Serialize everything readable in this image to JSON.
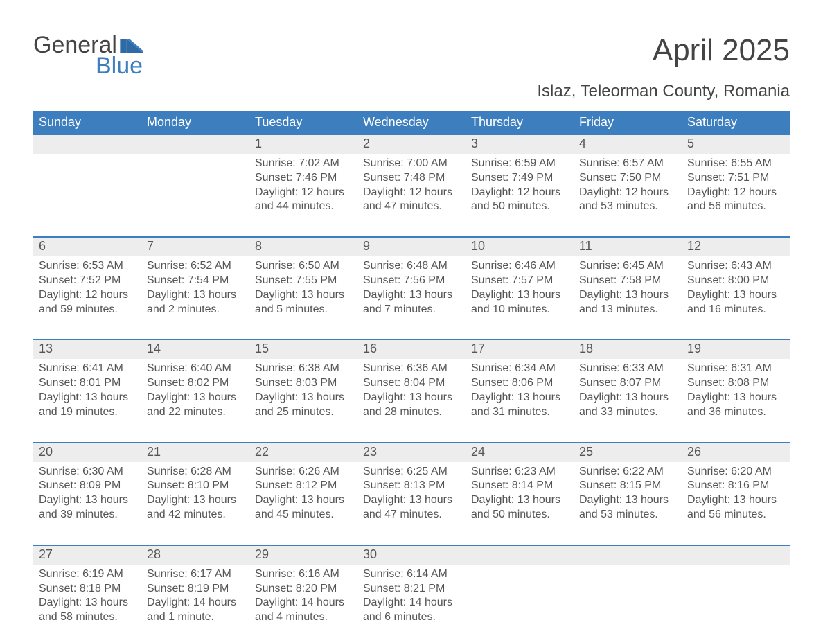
{
  "logo": {
    "top": "General",
    "bottom": "Blue",
    "colors": {
      "text": "#444444",
      "accent": "#3d7ebf"
    }
  },
  "title": "April 2025",
  "subtitle": "Islaz, Teleorman County, Romania",
  "theme": {
    "header_bg": "#3d7ebf",
    "header_text": "#ffffff",
    "daynum_bg": "#ededed",
    "week_border": "#3d7ebf",
    "body_text": "#555555",
    "page_bg": "#ffffff"
  },
  "day_names": [
    "Sunday",
    "Monday",
    "Tuesday",
    "Wednesday",
    "Thursday",
    "Friday",
    "Saturday"
  ],
  "weeks": [
    [
      null,
      null,
      {
        "n": "1",
        "sunrise": "Sunrise: 7:02 AM",
        "sunset": "Sunset: 7:46 PM",
        "day": "Daylight: 12 hours and 44 minutes."
      },
      {
        "n": "2",
        "sunrise": "Sunrise: 7:00 AM",
        "sunset": "Sunset: 7:48 PM",
        "day": "Daylight: 12 hours and 47 minutes."
      },
      {
        "n": "3",
        "sunrise": "Sunrise: 6:59 AM",
        "sunset": "Sunset: 7:49 PM",
        "day": "Daylight: 12 hours and 50 minutes."
      },
      {
        "n": "4",
        "sunrise": "Sunrise: 6:57 AM",
        "sunset": "Sunset: 7:50 PM",
        "day": "Daylight: 12 hours and 53 minutes."
      },
      {
        "n": "5",
        "sunrise": "Sunrise: 6:55 AM",
        "sunset": "Sunset: 7:51 PM",
        "day": "Daylight: 12 hours and 56 minutes."
      }
    ],
    [
      {
        "n": "6",
        "sunrise": "Sunrise: 6:53 AM",
        "sunset": "Sunset: 7:52 PM",
        "day": "Daylight: 12 hours and 59 minutes."
      },
      {
        "n": "7",
        "sunrise": "Sunrise: 6:52 AM",
        "sunset": "Sunset: 7:54 PM",
        "day": "Daylight: 13 hours and 2 minutes."
      },
      {
        "n": "8",
        "sunrise": "Sunrise: 6:50 AM",
        "sunset": "Sunset: 7:55 PM",
        "day": "Daylight: 13 hours and 5 minutes."
      },
      {
        "n": "9",
        "sunrise": "Sunrise: 6:48 AM",
        "sunset": "Sunset: 7:56 PM",
        "day": "Daylight: 13 hours and 7 minutes."
      },
      {
        "n": "10",
        "sunrise": "Sunrise: 6:46 AM",
        "sunset": "Sunset: 7:57 PM",
        "day": "Daylight: 13 hours and 10 minutes."
      },
      {
        "n": "11",
        "sunrise": "Sunrise: 6:45 AM",
        "sunset": "Sunset: 7:58 PM",
        "day": "Daylight: 13 hours and 13 minutes."
      },
      {
        "n": "12",
        "sunrise": "Sunrise: 6:43 AM",
        "sunset": "Sunset: 8:00 PM",
        "day": "Daylight: 13 hours and 16 minutes."
      }
    ],
    [
      {
        "n": "13",
        "sunrise": "Sunrise: 6:41 AM",
        "sunset": "Sunset: 8:01 PM",
        "day": "Daylight: 13 hours and 19 minutes."
      },
      {
        "n": "14",
        "sunrise": "Sunrise: 6:40 AM",
        "sunset": "Sunset: 8:02 PM",
        "day": "Daylight: 13 hours and 22 minutes."
      },
      {
        "n": "15",
        "sunrise": "Sunrise: 6:38 AM",
        "sunset": "Sunset: 8:03 PM",
        "day": "Daylight: 13 hours and 25 minutes."
      },
      {
        "n": "16",
        "sunrise": "Sunrise: 6:36 AM",
        "sunset": "Sunset: 8:04 PM",
        "day": "Daylight: 13 hours and 28 minutes."
      },
      {
        "n": "17",
        "sunrise": "Sunrise: 6:34 AM",
        "sunset": "Sunset: 8:06 PM",
        "day": "Daylight: 13 hours and 31 minutes."
      },
      {
        "n": "18",
        "sunrise": "Sunrise: 6:33 AM",
        "sunset": "Sunset: 8:07 PM",
        "day": "Daylight: 13 hours and 33 minutes."
      },
      {
        "n": "19",
        "sunrise": "Sunrise: 6:31 AM",
        "sunset": "Sunset: 8:08 PM",
        "day": "Daylight: 13 hours and 36 minutes."
      }
    ],
    [
      {
        "n": "20",
        "sunrise": "Sunrise: 6:30 AM",
        "sunset": "Sunset: 8:09 PM",
        "day": "Daylight: 13 hours and 39 minutes."
      },
      {
        "n": "21",
        "sunrise": "Sunrise: 6:28 AM",
        "sunset": "Sunset: 8:10 PM",
        "day": "Daylight: 13 hours and 42 minutes."
      },
      {
        "n": "22",
        "sunrise": "Sunrise: 6:26 AM",
        "sunset": "Sunset: 8:12 PM",
        "day": "Daylight: 13 hours and 45 minutes."
      },
      {
        "n": "23",
        "sunrise": "Sunrise: 6:25 AM",
        "sunset": "Sunset: 8:13 PM",
        "day": "Daylight: 13 hours and 47 minutes."
      },
      {
        "n": "24",
        "sunrise": "Sunrise: 6:23 AM",
        "sunset": "Sunset: 8:14 PM",
        "day": "Daylight: 13 hours and 50 minutes."
      },
      {
        "n": "25",
        "sunrise": "Sunrise: 6:22 AM",
        "sunset": "Sunset: 8:15 PM",
        "day": "Daylight: 13 hours and 53 minutes."
      },
      {
        "n": "26",
        "sunrise": "Sunrise: 6:20 AM",
        "sunset": "Sunset: 8:16 PM",
        "day": "Daylight: 13 hours and 56 minutes."
      }
    ],
    [
      {
        "n": "27",
        "sunrise": "Sunrise: 6:19 AM",
        "sunset": "Sunset: 8:18 PM",
        "day": "Daylight: 13 hours and 58 minutes."
      },
      {
        "n": "28",
        "sunrise": "Sunrise: 6:17 AM",
        "sunset": "Sunset: 8:19 PM",
        "day": "Daylight: 14 hours and 1 minute."
      },
      {
        "n": "29",
        "sunrise": "Sunrise: 6:16 AM",
        "sunset": "Sunset: 8:20 PM",
        "day": "Daylight: 14 hours and 4 minutes."
      },
      {
        "n": "30",
        "sunrise": "Sunrise: 6:14 AM",
        "sunset": "Sunset: 8:21 PM",
        "day": "Daylight: 14 hours and 6 minutes."
      },
      null,
      null,
      null
    ]
  ]
}
